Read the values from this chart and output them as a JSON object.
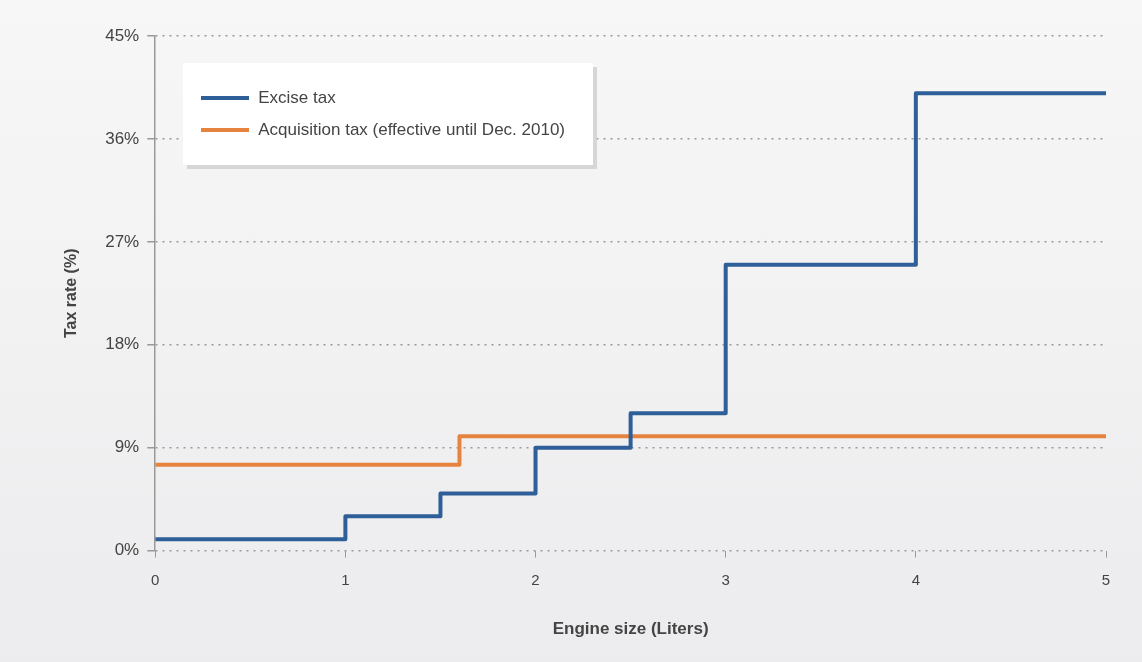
{
  "chart_data": {
    "type": "step",
    "xlabel": "Engine size (Liters)",
    "ylabel": "Tax rate (%)",
    "xlim": [
      0,
      5
    ],
    "xticks": [
      0,
      1,
      2,
      3,
      4,
      5
    ],
    "ylim": [
      0,
      45
    ],
    "yticks": [
      {
        "value": 0,
        "label": "0%"
      },
      {
        "value": 9,
        "label": "9%"
      },
      {
        "value": 18,
        "label": "18%"
      },
      {
        "value": 27,
        "label": "27%"
      },
      {
        "value": 36,
        "label": "36%"
      },
      {
        "value": 45,
        "label": "45%"
      }
    ],
    "grid": "y",
    "legend": "top left",
    "marker": "none",
    "line_style": "solid",
    "series": [
      {
        "name": "Excise tax",
        "color": "#2e5f98",
        "x": [
          0,
          1,
          1.5,
          2,
          2.5,
          3,
          4,
          5
        ],
        "values": [
          1,
          3,
          5,
          9,
          12,
          25,
          40,
          40
        ]
      },
      {
        "name": "Acquisition tax (effective until Dec. 2010)",
        "color": "#e6843f",
        "x": [
          0,
          1.6,
          5
        ],
        "values": [
          7.5,
          10,
          10
        ]
      }
    ]
  }
}
